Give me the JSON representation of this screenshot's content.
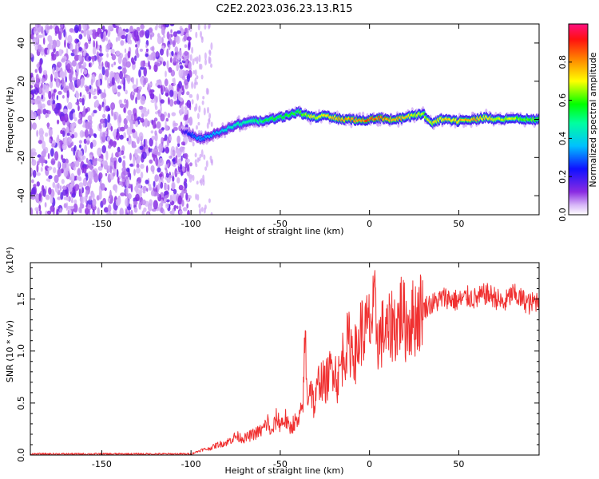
{
  "chart_data": [
    {
      "type": "heatmap",
      "title": "C2E2.2023.036.23.13.R15",
      "xlabel": "Height of straight line (km)",
      "ylabel": "Frequency (Hz)",
      "xlim": [
        -190,
        95
      ],
      "ylim": [
        -50,
        50
      ],
      "xticks": [
        -150,
        -100,
        -50,
        0,
        50
      ],
      "yticks": [
        40,
        20,
        0,
        -20,
        -40
      ],
      "colorbar": {
        "label": "Normalized spectral amplitude",
        "range": [
          0.0,
          1.0
        ],
        "ticks": [
          0.0,
          0.2,
          0.4,
          0.6,
          0.8
        ]
      },
      "noise_region_x": [
        -190,
        -100
      ],
      "ridge": {
        "x": [
          -105,
          -100,
          -95,
          -90,
          -85,
          -80,
          -75,
          -70,
          -65,
          -60,
          -55,
          -50,
          -45,
          -40,
          -35,
          -30,
          -25,
          -20,
          -15,
          -10,
          -5,
          0,
          5,
          10,
          15,
          20,
          25,
          30,
          35,
          40,
          45,
          50,
          55,
          60,
          65,
          70,
          75,
          80,
          85,
          90,
          95
        ],
        "freq": [
          -6,
          -8,
          -10,
          -9,
          -7,
          -5,
          -3,
          -2,
          -1,
          -1,
          0,
          1,
          2,
          4,
          2,
          1,
          2,
          1,
          0,
          0,
          -1,
          0,
          1,
          0,
          0,
          1,
          2,
          3,
          -2,
          0,
          0,
          -1,
          0,
          0,
          1,
          0,
          0,
          1,
          0,
          0,
          0
        ],
        "amplitude": [
          0.15,
          0.3,
          0.35,
          0.38,
          0.4,
          0.45,
          0.5,
          0.5,
          0.55,
          0.55,
          0.6,
          0.6,
          0.62,
          0.6,
          0.7,
          0.75,
          0.78,
          0.8,
          0.85,
          0.85,
          0.88,
          0.9,
          0.9,
          0.88,
          0.85,
          0.8,
          0.75,
          0.7,
          0.75,
          0.78,
          0.8,
          0.82,
          0.85,
          0.82,
          0.78,
          0.75,
          0.72,
          0.7,
          0.68,
          0.65,
          0.6
        ]
      }
    },
    {
      "type": "line",
      "xlabel": "Height of straight line (km)",
      "ylabel": "SNR (10 * v/v)",
      "scale_label": "(x10⁴)",
      "color": "#f03030",
      "xlim": [
        -190,
        95
      ],
      "ylim": [
        0,
        1.85
      ],
      "xticks": [
        -150,
        -100,
        -50,
        0,
        50
      ],
      "yticks": [
        0.0,
        0.5,
        1.0,
        1.5
      ],
      "ytick_labels": [
        "0.0",
        "0.5",
        "1.0",
        "1.5"
      ],
      "series": [
        {
          "name": "SNR",
          "x": [
            -190,
            -150,
            -105,
            -100,
            -97,
            -94,
            -90,
            -85,
            -80,
            -75,
            -70,
            -65,
            -60,
            -57,
            -55,
            -52,
            -50,
            -47,
            -45,
            -42,
            -40,
            -38,
            -37,
            -36,
            -35,
            -33,
            -31,
            -28,
            -25,
            -22,
            -20,
            -18,
            -15,
            -12,
            -10,
            -7,
            -5,
            -3,
            0,
            3,
            5,
            8,
            10,
            13,
            15,
            18,
            20,
            23,
            25,
            28,
            30,
            33,
            35,
            38,
            40,
            43,
            45,
            50,
            55,
            60,
            65,
            70,
            75,
            80,
            85,
            90,
            95
          ],
          "y": [
            0.01,
            0.01,
            0.01,
            0.01,
            0.03,
            0.05,
            0.06,
            0.1,
            0.12,
            0.18,
            0.16,
            0.2,
            0.24,
            0.32,
            0.2,
            0.36,
            0.3,
            0.35,
            0.25,
            0.32,
            0.3,
            0.42,
            0.6,
            1.2,
            0.55,
            0.7,
            0.45,
            0.75,
            0.68,
            0.8,
            0.9,
            0.7,
            0.95,
            1.08,
            1.05,
            0.95,
            1.2,
            1.18,
            1.25,
            1.38,
            1.1,
            1.2,
            1.15,
            1.28,
            1.22,
            1.4,
            1.25,
            1.3,
            1.32,
            1.38,
            1.4,
            1.45,
            1.45,
            1.48,
            1.5,
            1.52,
            1.5,
            1.48,
            1.52,
            1.5,
            1.55,
            1.52,
            1.45,
            1.55,
            1.5,
            1.45,
            1.5
          ]
        }
      ]
    }
  ]
}
